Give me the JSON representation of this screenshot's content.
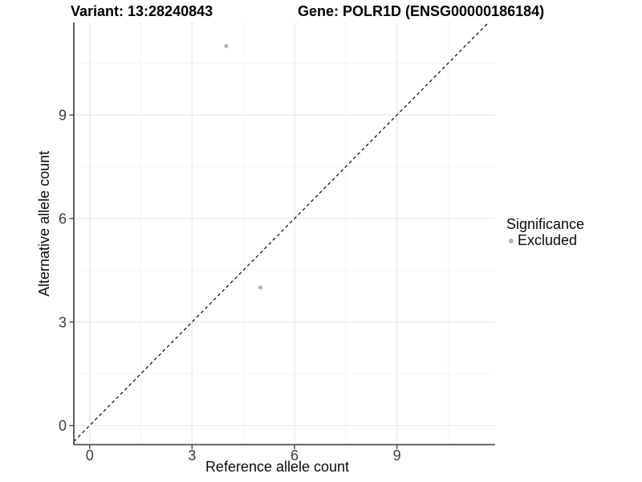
{
  "titles": {
    "variant": "Variant: 13:28240843",
    "gene": "Gene: POLR1D (ENSG00000186184)"
  },
  "chart_data": {
    "type": "scatter",
    "title": "Variant: 13:28240843 | Gene: POLR1D (ENSG00000186184)",
    "xlabel": "Reference allele count",
    "ylabel": "Alternative allele count",
    "xlim": [
      -0.46,
      11.9
    ],
    "ylim": [
      -0.55,
      11.7
    ],
    "x_ticks": [
      0,
      3,
      6,
      9
    ],
    "y_ticks": [
      0,
      3,
      6,
      9
    ],
    "x_minor_gridlines": [
      1.5,
      4.5,
      7.5,
      10.5
    ],
    "y_minor_gridlines": [
      1.5,
      4.5,
      7.5,
      10.5
    ],
    "grid": "major+minor",
    "legend_position": "right",
    "series": [
      {
        "name": "Excluded",
        "color": "#b2b2b2",
        "points": [
          {
            "x": 4,
            "y": 11
          },
          {
            "x": 5,
            "y": 4
          }
        ]
      }
    ],
    "identity_line": {
      "equation": "y = x",
      "style": "dashed",
      "color": "#000000"
    }
  },
  "legend": {
    "title": "Significance",
    "items": [
      {
        "label": "Excluded",
        "color": "#b2b2b2"
      }
    ]
  },
  "colors": {
    "background": "#ffffff",
    "axis_line": "#4f4f4f",
    "tick_label": "#3d3d3d",
    "grid_major": "#e9e9e9",
    "grid_minor": "#f4f4f4",
    "point": "#b2b2b2",
    "identity_line": "#000000"
  }
}
